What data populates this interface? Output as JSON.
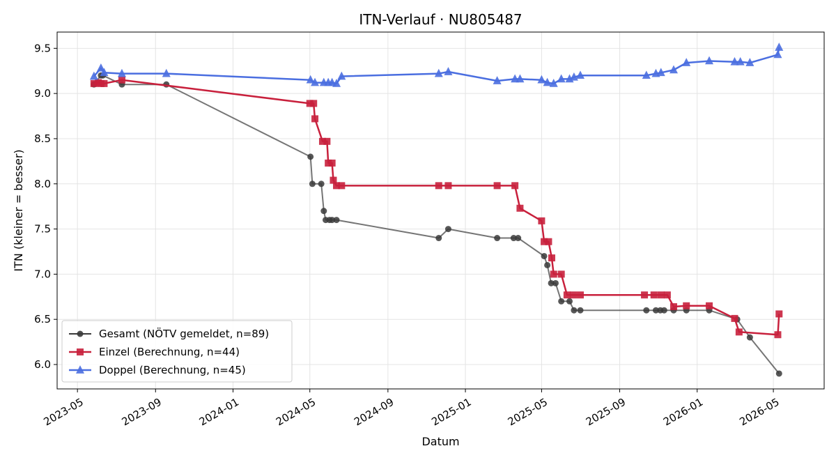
{
  "chart_data": {
    "type": "line",
    "title": "ITN-Verlauf · NU805487",
    "xlabel": "Datum",
    "ylabel": "ITN  (kleiner = besser)",
    "x_ticks": [
      "2023-05",
      "2023-09",
      "2024-01",
      "2024-05",
      "2024-09",
      "2025-01",
      "2025-05",
      "2025-09",
      "2026-01",
      "2026-05"
    ],
    "ylim": [
      5.73,
      9.68
    ],
    "y_ticks": [
      6.0,
      6.5,
      7.0,
      7.5,
      8.0,
      8.5,
      9.0,
      9.5
    ],
    "y_tick_labels": [
      "6.0",
      "6.5",
      "7.0",
      "7.5",
      "8.0",
      "8.5",
      "9.0",
      "9.5"
    ],
    "grid": true,
    "legend_position": "lower-left",
    "series": [
      {
        "name": "Gesamt (NÖTV gemeldet, n=89)",
        "color": "#3a3a3a",
        "marker": "circle",
        "points": [
          [
            "2023-05-27",
            9.1
          ],
          [
            "2023-06-07",
            9.2
          ],
          [
            "2023-06-10",
            9.2
          ],
          [
            "2023-07-10",
            9.1
          ],
          [
            "2023-09-18",
            9.1
          ],
          [
            "2024-05-02",
            8.3
          ],
          [
            "2024-05-05",
            8.0
          ],
          [
            "2024-05-19",
            8.0
          ],
          [
            "2024-05-23",
            7.7
          ],
          [
            "2024-05-26",
            7.6
          ],
          [
            "2024-06-01",
            7.6
          ],
          [
            "2024-06-05",
            7.6
          ],
          [
            "2024-06-12",
            7.6
          ],
          [
            "2024-11-20",
            7.4
          ],
          [
            "2024-12-05",
            7.5
          ],
          [
            "2025-02-20",
            7.4
          ],
          [
            "2025-03-18",
            7.4
          ],
          [
            "2025-03-25",
            7.4
          ],
          [
            "2025-05-05",
            7.2
          ],
          [
            "2025-05-10",
            7.1
          ],
          [
            "2025-05-16",
            6.9
          ],
          [
            "2025-05-23",
            6.9
          ],
          [
            "2025-06-01",
            6.7
          ],
          [
            "2025-06-14",
            6.7
          ],
          [
            "2025-06-21",
            6.6
          ],
          [
            "2025-07-01",
            6.6
          ],
          [
            "2025-10-13",
            6.6
          ],
          [
            "2025-10-28",
            6.6
          ],
          [
            "2025-11-04",
            6.6
          ],
          [
            "2025-11-10",
            6.6
          ],
          [
            "2025-11-25",
            6.6
          ],
          [
            "2025-12-15",
            6.6
          ],
          [
            "2026-01-20",
            6.6
          ],
          [
            "2026-03-05",
            6.5
          ],
          [
            "2026-03-25",
            6.3
          ],
          [
            "2026-05-10",
            5.9
          ]
        ]
      },
      {
        "name": "Einzel (Berechnung, n=44)",
        "color": "#c8203c",
        "marker": "square",
        "points": [
          [
            "2023-05-27",
            9.11
          ],
          [
            "2023-06-03",
            9.12
          ],
          [
            "2023-06-07",
            9.11
          ],
          [
            "2023-06-12",
            9.11
          ],
          [
            "2023-07-10",
            9.15
          ],
          [
            "2024-05-01",
            8.89
          ],
          [
            "2024-05-07",
            8.89
          ],
          [
            "2024-05-09",
            8.72
          ],
          [
            "2024-05-21",
            8.47
          ],
          [
            "2024-05-28",
            8.47
          ],
          [
            "2024-05-30",
            8.23
          ],
          [
            "2024-06-05",
            8.23
          ],
          [
            "2024-06-07",
            8.04
          ],
          [
            "2024-06-12",
            7.98
          ],
          [
            "2024-06-20",
            7.98
          ],
          [
            "2024-11-20",
            7.98
          ],
          [
            "2024-12-05",
            7.98
          ],
          [
            "2025-02-20",
            7.98
          ],
          [
            "2025-03-20",
            7.98
          ],
          [
            "2025-03-28",
            7.73
          ],
          [
            "2025-05-01",
            7.59
          ],
          [
            "2025-05-05",
            7.36
          ],
          [
            "2025-05-12",
            7.36
          ],
          [
            "2025-05-17",
            7.18
          ],
          [
            "2025-05-20",
            7.0
          ],
          [
            "2025-06-01",
            7.0
          ],
          [
            "2025-06-10",
            6.77
          ],
          [
            "2025-06-20",
            6.77
          ],
          [
            "2025-07-01",
            6.77
          ],
          [
            "2025-10-10",
            6.77
          ],
          [
            "2025-10-25",
            6.77
          ],
          [
            "2025-11-05",
            6.77
          ],
          [
            "2025-11-15",
            6.77
          ],
          [
            "2025-11-25",
            6.64
          ],
          [
            "2025-12-15",
            6.65
          ],
          [
            "2026-01-20",
            6.65
          ],
          [
            "2026-03-01",
            6.51
          ],
          [
            "2026-03-08",
            6.36
          ],
          [
            "2026-05-08",
            6.33
          ],
          [
            "2026-05-10",
            6.56
          ]
        ]
      },
      {
        "name": "Doppel (Berechnung, n=45)",
        "color": "#4a6ee0",
        "marker": "triangle",
        "points": [
          [
            "2023-05-27",
            9.19
          ],
          [
            "2023-06-07",
            9.28
          ],
          [
            "2023-06-12",
            9.23
          ],
          [
            "2023-07-10",
            9.22
          ],
          [
            "2023-09-18",
            9.22
          ],
          [
            "2024-05-02",
            9.15
          ],
          [
            "2024-05-09",
            9.12
          ],
          [
            "2024-05-23",
            9.12
          ],
          [
            "2024-05-30",
            9.12
          ],
          [
            "2024-06-05",
            9.12
          ],
          [
            "2024-06-12",
            9.11
          ],
          [
            "2024-06-20",
            9.19
          ],
          [
            "2024-11-20",
            9.22
          ],
          [
            "2024-12-05",
            9.24
          ],
          [
            "2025-02-20",
            9.14
          ],
          [
            "2025-03-20",
            9.16
          ],
          [
            "2025-03-28",
            9.16
          ],
          [
            "2025-05-01",
            9.15
          ],
          [
            "2025-05-10",
            9.12
          ],
          [
            "2025-05-20",
            9.11
          ],
          [
            "2025-06-01",
            9.16
          ],
          [
            "2025-06-14",
            9.16
          ],
          [
            "2025-06-21",
            9.18
          ],
          [
            "2025-07-01",
            9.2
          ],
          [
            "2025-10-13",
            9.2
          ],
          [
            "2025-10-28",
            9.22
          ],
          [
            "2025-11-05",
            9.23
          ],
          [
            "2025-11-25",
            9.26
          ],
          [
            "2025-12-15",
            9.34
          ],
          [
            "2026-01-20",
            9.36
          ],
          [
            "2026-03-01",
            9.35
          ],
          [
            "2026-03-10",
            9.35
          ],
          [
            "2026-03-25",
            9.34
          ],
          [
            "2026-05-08",
            9.43
          ],
          [
            "2026-05-10",
            9.51
          ]
        ]
      }
    ]
  }
}
